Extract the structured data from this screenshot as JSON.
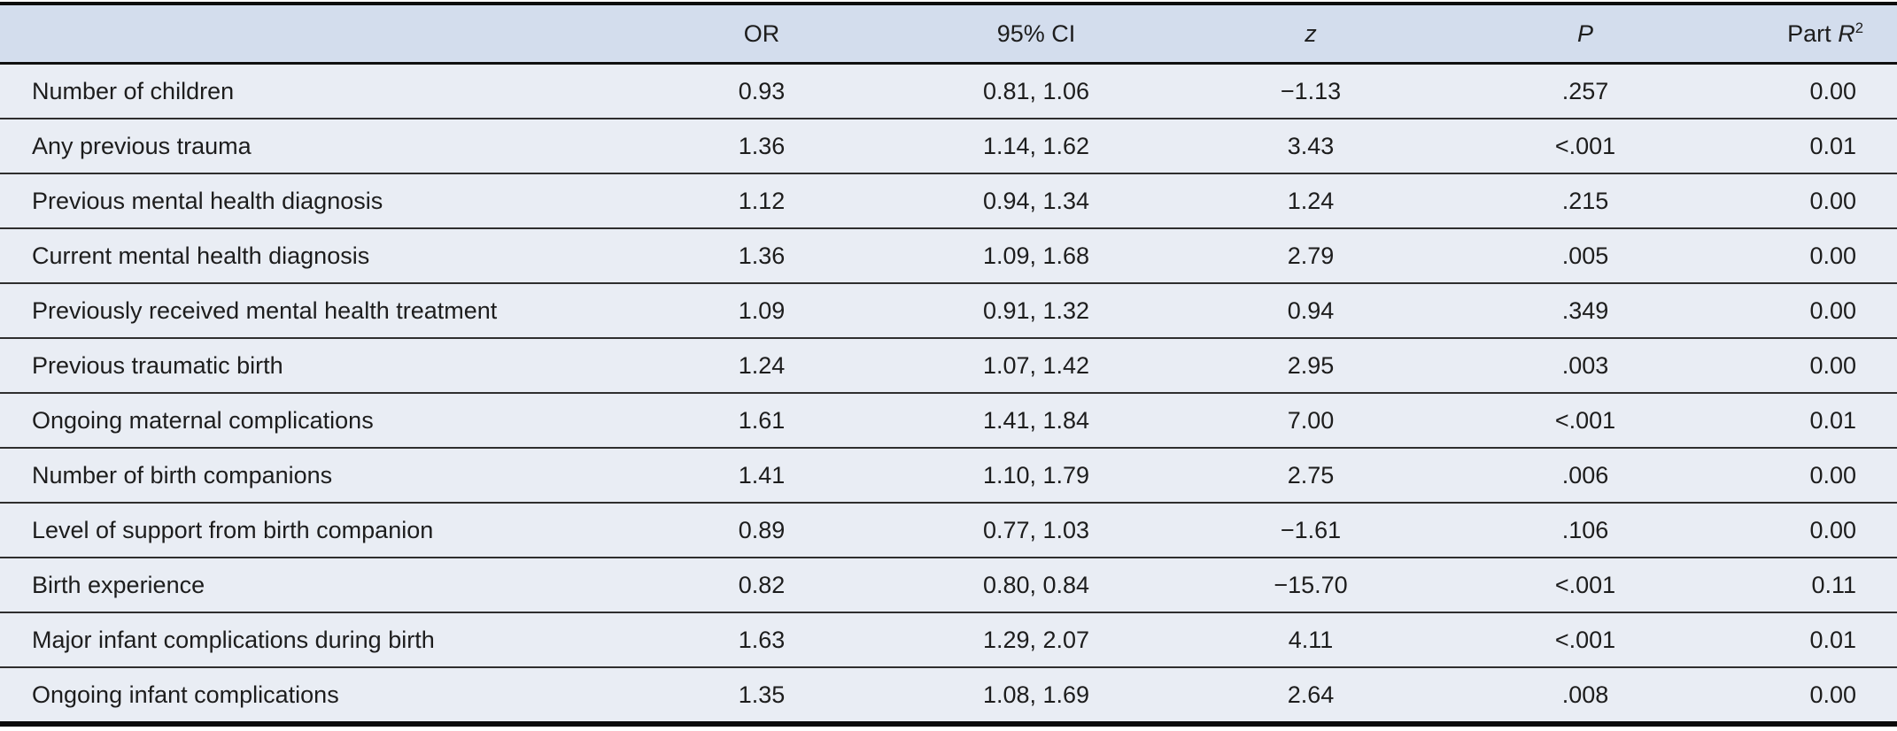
{
  "colors": {
    "header_bg": "#d3dded",
    "row_bg": "#e9edf4",
    "rule_heavy": "#0b0b0b",
    "rule_light": "#2e2e2e",
    "text": "#1d1d1d"
  },
  "table": {
    "header": {
      "label": "",
      "or": "OR",
      "ci": "95% CI",
      "z": "z",
      "p": "P",
      "part_prefix": "Part ",
      "part_r": "R",
      "part_exp": "2"
    },
    "rows": [
      {
        "label": "Number of children",
        "or": "0.93",
        "ci": "0.81, 1.06",
        "z": "−1.13",
        "p": ".257",
        "r2": "0.00"
      },
      {
        "label": "Any previous trauma",
        "or": "1.36",
        "ci": "1.14, 1.62",
        "z": "3.43",
        "p": "<.001",
        "r2": "0.01"
      },
      {
        "label": "Previous mental health diagnosis",
        "or": "1.12",
        "ci": "0.94, 1.34",
        "z": "1.24",
        "p": ".215",
        "r2": "0.00"
      },
      {
        "label": "Current mental health diagnosis",
        "or": "1.36",
        "ci": "1.09, 1.68",
        "z": "2.79",
        "p": ".005",
        "r2": "0.00"
      },
      {
        "label": "Previously received mental health treatment",
        "or": "1.09",
        "ci": "0.91, 1.32",
        "z": "0.94",
        "p": ".349",
        "r2": "0.00"
      },
      {
        "label": "Previous traumatic birth",
        "or": "1.24",
        "ci": "1.07, 1.42",
        "z": "2.95",
        "p": ".003",
        "r2": "0.00"
      },
      {
        "label": "Ongoing maternal complications",
        "or": "1.61",
        "ci": "1.41, 1.84",
        "z": "7.00",
        "p": "<.001",
        "r2": "0.01"
      },
      {
        "label": "Number of birth companions",
        "or": "1.41",
        "ci": "1.10, 1.79",
        "z": "2.75",
        "p": ".006",
        "r2": "0.00"
      },
      {
        "label": "Level of support from birth companion",
        "or": "0.89",
        "ci": "0.77, 1.03",
        "z": "−1.61",
        "p": ".106",
        "r2": "0.00"
      },
      {
        "label": "Birth experience",
        "or": "0.82",
        "ci": "0.80, 0.84",
        "z": "−15.70",
        "p": "<.001",
        "r2": "0.11"
      },
      {
        "label": "Major infant complications during birth",
        "or": "1.63",
        "ci": "1.29, 2.07",
        "z": "4.11",
        "p": "<.001",
        "r2": "0.01"
      },
      {
        "label": "Ongoing infant complications",
        "or": "1.35",
        "ci": "1.08, 1.69",
        "z": "2.64",
        "p": ".008",
        "r2": "0.00"
      }
    ]
  }
}
